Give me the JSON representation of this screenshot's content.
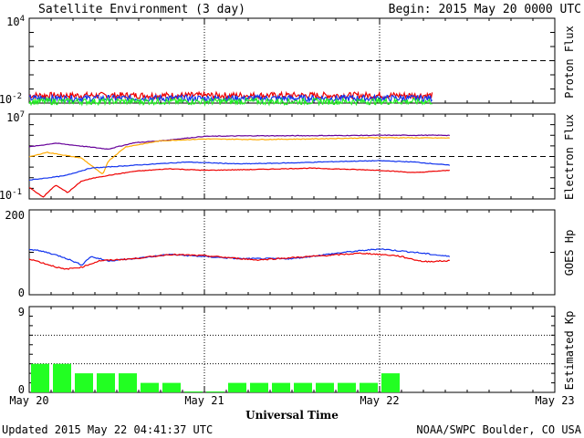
{
  "header": {
    "title": "Satellite Environment (3 day)",
    "begin": "Begin:  2015 May 20 0000 UTC"
  },
  "footer": {
    "updated": "Updated 2015 May 22 04:41:37 UTC",
    "credit": "NOAA/SWPC Boulder, CO USA"
  },
  "colors": {
    "red": "#ee0000",
    "blue": "#1133ee",
    "green": "#22ee22",
    "purple": "#660099",
    "orange": "#ffaa00",
    "kp_fill": "#22ff22"
  },
  "chart_data": [
    {
      "type": "line",
      "ylabel": "Proton Flux",
      "y_scale": "log",
      "ylim": [
        "1e-2",
        "1e4"
      ],
      "tick_labels": {
        "top_base": "10",
        "top_exp": "4",
        "bottom_base": "10",
        "bottom_exp": "-2"
      },
      "threshold": 10,
      "series": [
        {
          "color": "red",
          "level": 0.035
        },
        {
          "color": "blue",
          "level": 0.022
        },
        {
          "color": "green",
          "level": 0.013
        }
      ]
    },
    {
      "type": "line",
      "ylabel": "Electron Flux",
      "y_scale": "log",
      "ylim": [
        "1e-1",
        "1e7"
      ],
      "tick_labels": {
        "top_base": "10",
        "top_exp": "7",
        "bottom_base": "10",
        "bottom_exp": "-1"
      },
      "threshold": 1000,
      "series": [
        {
          "color": "purple",
          "x": [
            0,
            0.15,
            0.45,
            0.6,
            0.75,
            1.0,
            1.3,
            1.5,
            1.8,
            2.0,
            2.2,
            2.4
          ],
          "y": [
            8000,
            18000,
            5000,
            20000,
            30000,
            80000,
            90000,
            90000,
            95000,
            100000,
            100000,
            100000
          ]
        },
        {
          "color": "orange",
          "x": [
            0,
            0.1,
            0.3,
            0.42,
            0.45,
            0.55,
            0.75,
            1.0,
            1.3,
            1.6,
            2.0,
            2.4
          ],
          "y": [
            900,
            2500,
            700,
            20,
            350,
            8000,
            30000,
            45000,
            40000,
            45000,
            60000,
            55000
          ]
        },
        {
          "color": "blue",
          "x": [
            0,
            0.2,
            0.35,
            0.6,
            0.9,
            1.2,
            1.5,
            1.8,
            2.0,
            2.2,
            2.4
          ],
          "y": [
            6,
            15,
            80,
            150,
            300,
            200,
            250,
            350,
            400,
            300,
            150
          ]
        },
        {
          "color": "red",
          "x": [
            0,
            0.08,
            0.15,
            0.22,
            0.3,
            0.4,
            0.6,
            0.8,
            1.0,
            1.3,
            1.6,
            2.0,
            2.2,
            2.4
          ],
          "y": [
            1.2,
            0.15,
            2,
            0.4,
            5,
            12,
            40,
            70,
            50,
            60,
            80,
            50,
            30,
            50
          ]
        }
      ]
    },
    {
      "type": "line",
      "ylabel": "GOES Hp",
      "ylim": [
        0,
        200
      ],
      "y_ticks": [
        "200",
        "0"
      ],
      "series": [
        {
          "color": "blue",
          "x": [
            0,
            0.1,
            0.2,
            0.3,
            0.35,
            0.45,
            0.6,
            0.8,
            1.0,
            1.2,
            1.5,
            1.8,
            2.0,
            2.2,
            2.4
          ],
          "y": [
            108,
            100,
            88,
            70,
            90,
            80,
            85,
            95,
            90,
            85,
            85,
            100,
            108,
            100,
            90
          ]
        },
        {
          "color": "red",
          "x": [
            0,
            0.1,
            0.2,
            0.3,
            0.4,
            0.6,
            0.8,
            1.0,
            1.3,
            1.6,
            1.9,
            2.1,
            2.25,
            2.4
          ],
          "y": [
            85,
            72,
            60,
            65,
            80,
            85,
            95,
            92,
            82,
            90,
            98,
            92,
            78,
            80
          ]
        }
      ]
    },
    {
      "type": "bar",
      "ylabel": "Estimated Kp",
      "ylim": [
        0,
        9
      ],
      "y_ticks": [
        "9",
        "0"
      ],
      "gridlines": [
        3,
        6
      ],
      "values": [
        3,
        3,
        2,
        2,
        2,
        1,
        1,
        0.1,
        0.1,
        1,
        1,
        1,
        1,
        1,
        1,
        1,
        2
      ]
    }
  ],
  "x_axis": {
    "ticks": [
      "May 20",
      "May 21",
      "May 22",
      "May 23"
    ],
    "xlabel": "Universal Time",
    "xlim": [
      0,
      3
    ]
  }
}
